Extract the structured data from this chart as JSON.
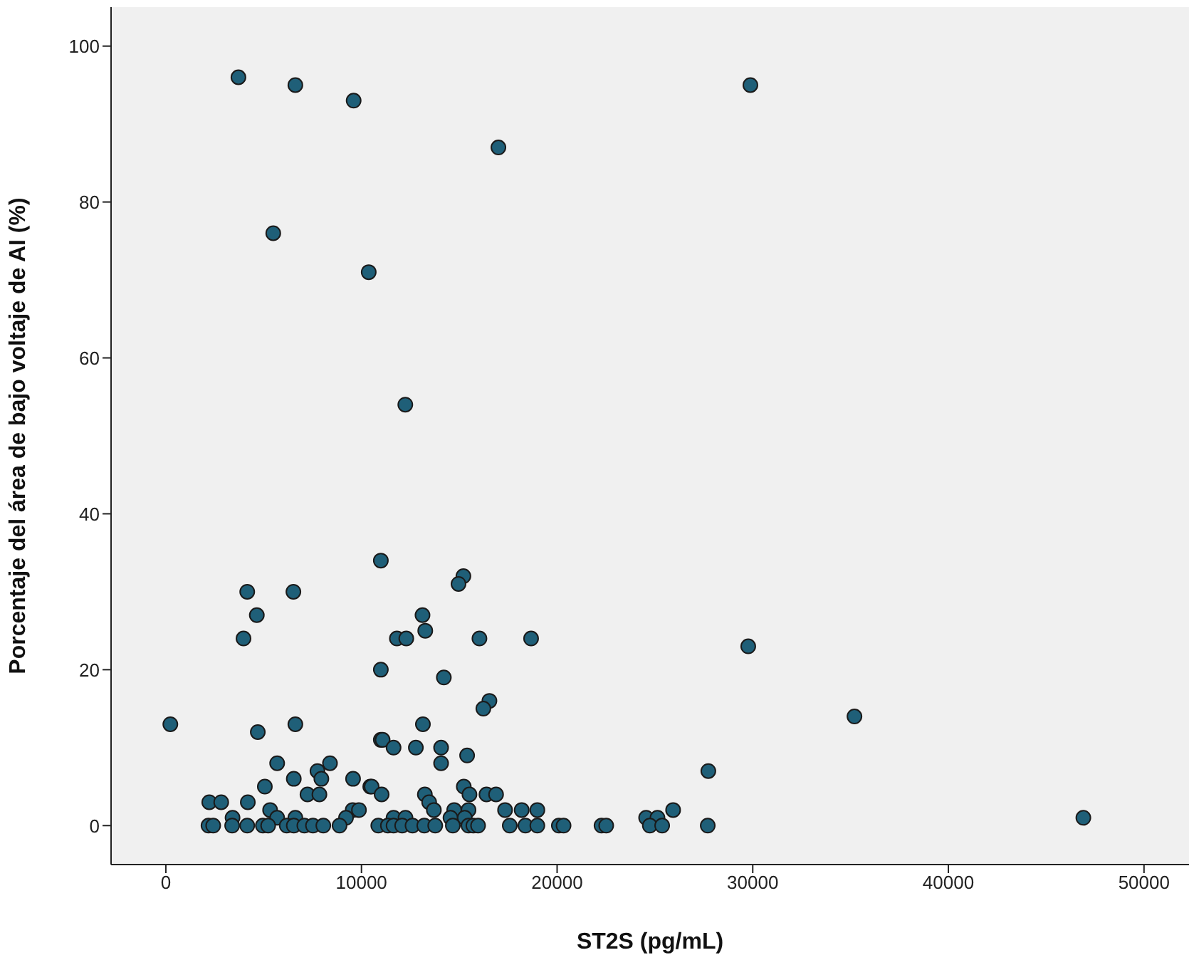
{
  "chart_data": {
    "type": "scatter",
    "xlabel": "ST2S (pg/mL)",
    "ylabel": "Porcentaje del área de bajo voltaje de AI (%)",
    "xlim": [
      -2800,
      52300
    ],
    "xticks": [
      0,
      10000,
      20000,
      30000,
      40000,
      50000
    ],
    "ylim": [
      -5,
      105
    ],
    "yticks": [
      0,
      20,
      40,
      60,
      80,
      100
    ],
    "grid": false,
    "marker": "circle",
    "series": [
      {
        "color": "#1f5f78",
        "x": [
          3710,
          6620,
          9600,
          17000,
          29880,
          5490,
          10370,
          12240,
          10990,
          15210,
          14960,
          4160,
          6520,
          4650,
          13120,
          3970,
          11810,
          12290,
          13260,
          16030,
          18670,
          29770,
          10990,
          14210,
          16540,
          16230,
          35200,
          230,
          4700,
          6620,
          13140,
          10990,
          11080,
          11640,
          12780,
          14070,
          14070,
          15400,
          5690,
          8390,
          7750,
          7950,
          6540,
          9570,
          5060,
          10450,
          10520,
          11030,
          15230,
          15520,
          16390,
          16880,
          7240,
          7850,
          2220,
          2830,
          4190,
          13240,
          13460,
          13700,
          5330,
          9550,
          9870,
          14740,
          15470,
          17340,
          18190,
          18990,
          27730,
          25930,
          3410,
          6620,
          9210,
          11640,
          12250,
          14550,
          15280,
          24550,
          25130,
          46900,
          5690,
          2180,
          2420,
          3390,
          4160,
          4960,
          5230,
          6180,
          6540,
          7080,
          7520,
          8050,
          8880,
          10860,
          11350,
          11640,
          12080,
          12610,
          13210,
          13770,
          14670,
          15470,
          15720,
          15960,
          17580,
          18380,
          18990,
          20090,
          20330,
          22270,
          22510,
          24740,
          25370,
          27700
        ],
        "values": [
          96,
          95,
          93,
          87,
          95,
          76,
          71,
          54,
          34,
          32,
          31,
          30,
          30,
          27,
          27,
          24,
          24,
          24,
          25,
          24,
          24,
          23,
          20,
          19,
          16,
          15,
          14,
          13,
          12,
          13,
          13,
          11,
          11,
          10,
          10,
          10,
          8,
          9,
          8,
          8,
          7,
          6,
          6,
          6,
          5,
          5,
          5,
          4,
          5,
          4,
          4,
          4,
          4,
          4,
          3,
          3,
          3,
          4,
          3,
          2,
          2,
          2,
          2,
          2,
          2,
          2,
          2,
          2,
          7,
          2,
          1,
          1,
          1,
          1,
          1,
          1,
          1,
          1,
          1,
          1,
          1,
          0,
          0,
          0,
          0,
          0,
          0,
          0,
          0,
          0,
          0,
          0,
          0,
          0,
          0,
          0,
          0,
          0,
          0,
          0,
          0,
          0,
          0,
          0,
          0,
          0,
          0,
          0,
          0,
          0,
          0,
          0,
          0,
          0
        ]
      }
    ]
  }
}
